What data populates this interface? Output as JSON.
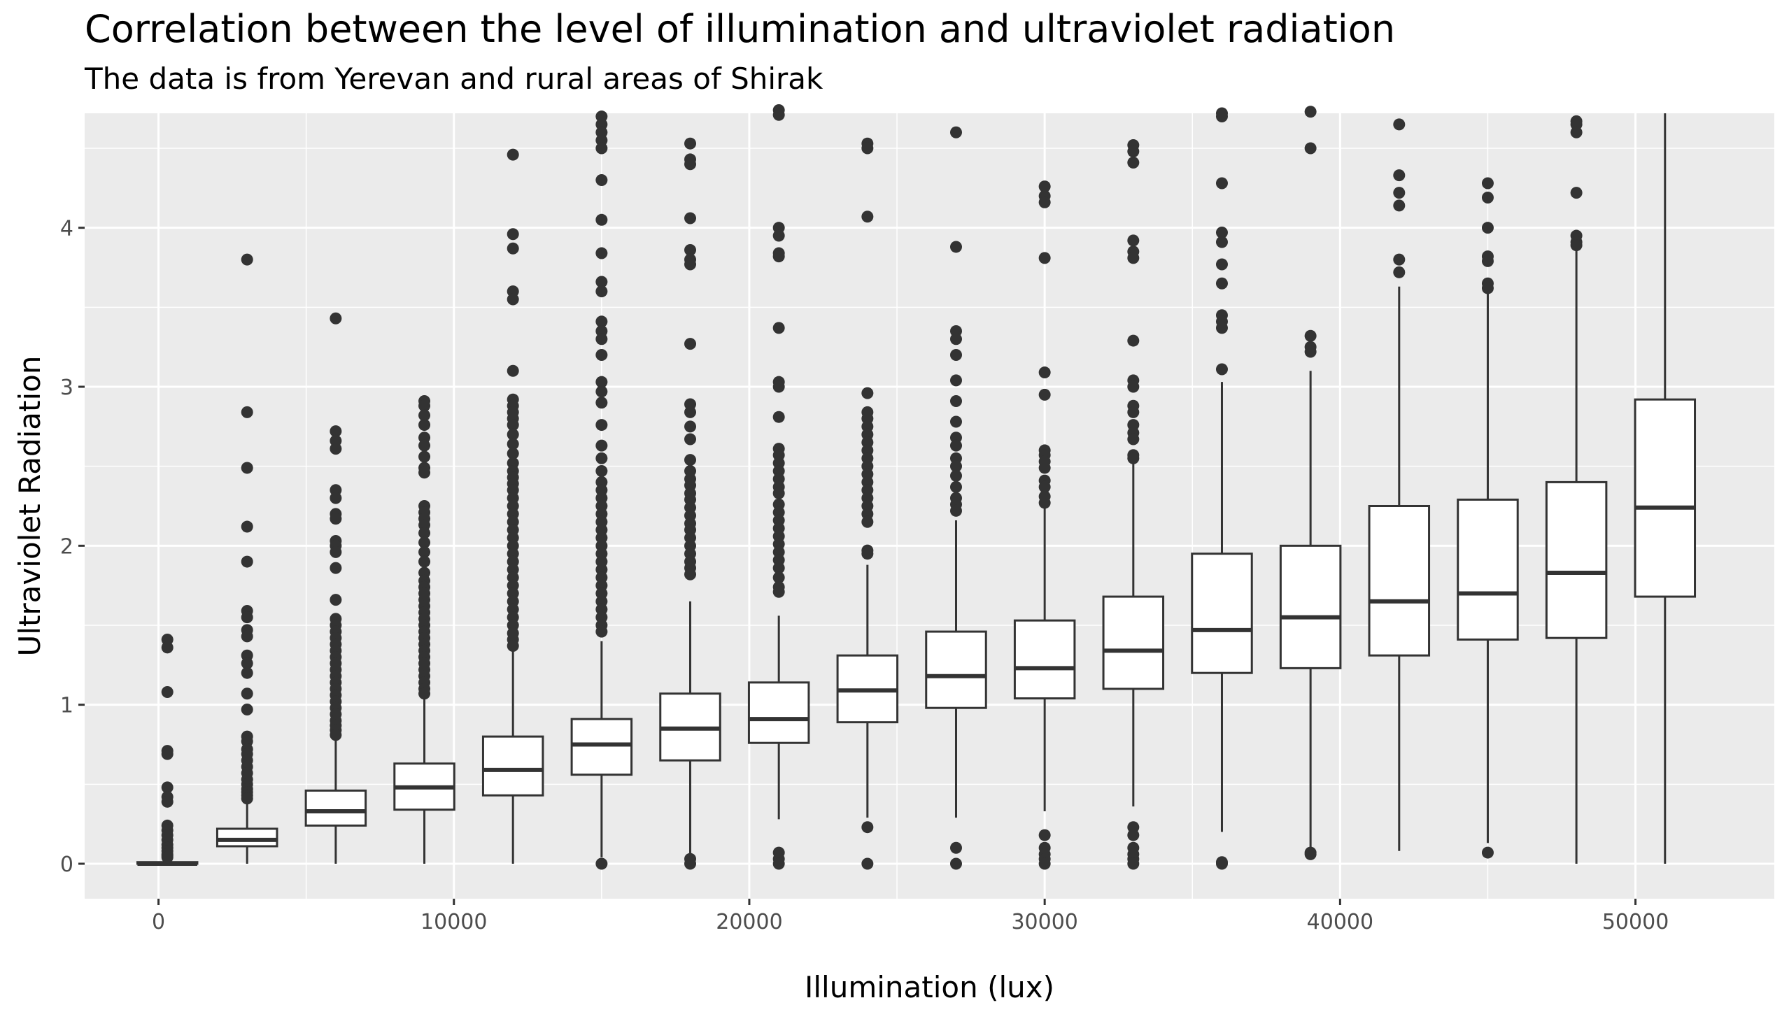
{
  "chart_data": {
    "type": "boxplot",
    "title": "Correlation between the level of illumination and ultraviolet radiation",
    "subtitle": "The data is from Yerevan and rural areas of Shirak",
    "xlabel": "Illumination (lux)",
    "ylabel": "Ultraviolet Radiation",
    "xlim": [
      -2500,
      54700
    ],
    "ylim": [
      -0.22,
      4.72
    ],
    "x_ticks": [
      0,
      10000,
      20000,
      30000,
      40000,
      50000
    ],
    "y_ticks": [
      0,
      1,
      2,
      3,
      4
    ],
    "grid": true,
    "legend": "none",
    "colors": {
      "panel": "#EBEBEB",
      "grid": "#FFFFFF",
      "box_fill": "#FFFFFF",
      "stroke": "#333333",
      "tick_text": "#4D4D4D"
    },
    "boxes": [
      {
        "x": 300,
        "min": 0,
        "q1": 0,
        "median": 0,
        "q3": 0.01,
        "max": 0.03,
        "outliers": [
          1.41,
          1.36,
          1.08,
          0.71,
          0.69,
          0.48,
          0.42,
          0.39,
          0.24,
          0.21,
          0.18,
          0.15,
          0.12,
          0.1,
          0.08,
          0.06,
          0.05,
          0.04
        ]
      },
      {
        "x": 3000,
        "min": 0,
        "q1": 0.11,
        "median": 0.15,
        "q3": 0.22,
        "max": 0.38,
        "outliers": [
          3.8,
          2.84,
          2.49,
          2.12,
          1.9,
          1.59,
          1.55,
          1.47,
          1.43,
          1.31,
          1.26,
          1.2,
          1.07,
          0.97,
          0.8,
          0.77,
          0.72,
          0.69,
          0.65,
          0.61,
          0.57,
          0.53,
          0.5,
          0.47,
          0.45,
          0.43,
          0.41
        ]
      },
      {
        "x": 6000,
        "min": 0,
        "q1": 0.24,
        "median": 0.33,
        "q3": 0.46,
        "max": 0.78,
        "outliers": [
          3.43,
          2.72,
          2.66,
          2.61,
          2.35,
          2.3,
          2.2,
          2.17,
          2.03,
          2.0,
          1.96,
          1.86,
          1.66,
          1.54,
          1.5,
          1.46,
          1.42,
          1.38,
          1.34,
          1.3,
          1.26,
          1.22,
          1.18,
          1.14,
          1.1,
          1.06,
          1.02,
          0.98,
          0.94,
          0.9,
          0.87,
          0.84,
          0.81
        ]
      },
      {
        "x": 9000,
        "min": 0,
        "q1": 0.34,
        "median": 0.48,
        "q3": 0.63,
        "max": 1.06,
        "outliers": [
          2.91,
          2.88,
          2.82,
          2.76,
          2.68,
          2.63,
          2.56,
          2.49,
          2.46,
          2.25,
          2.21,
          2.17,
          2.13,
          2.08,
          2.02,
          1.96,
          1.9,
          1.83,
          1.78,
          1.74,
          1.7,
          1.66,
          1.62,
          1.58,
          1.54,
          1.5,
          1.46,
          1.42,
          1.38,
          1.34,
          1.3,
          1.26,
          1.22,
          1.18,
          1.14,
          1.1,
          1.07
        ]
      },
      {
        "x": 12000,
        "min": 0,
        "q1": 0.43,
        "median": 0.59,
        "q3": 0.8,
        "max": 1.35,
        "outliers": [
          4.46,
          3.96,
          3.87,
          3.6,
          3.55,
          3.1,
          2.92,
          2.88,
          2.84,
          2.8,
          2.76,
          2.7,
          2.64,
          2.58,
          2.52,
          2.47,
          2.43,
          2.39,
          2.35,
          2.3,
          2.25,
          2.2,
          2.15,
          2.1,
          2.05,
          2.0,
          1.95,
          1.9,
          1.85,
          1.8,
          1.75,
          1.7,
          1.65,
          1.6,
          1.55,
          1.5,
          1.45,
          1.41,
          1.37
        ]
      },
      {
        "x": 15000,
        "min": 0.04,
        "q1": 0.56,
        "median": 0.75,
        "q3": 0.91,
        "max": 1.4,
        "outliers": [
          4.7,
          4.65,
          4.6,
          4.55,
          4.5,
          4.3,
          4.05,
          3.84,
          3.66,
          3.6,
          3.41,
          3.35,
          3.3,
          3.2,
          3.03,
          2.97,
          2.9,
          2.76,
          2.63,
          2.55,
          2.47,
          2.4,
          2.35,
          2.3,
          2.25,
          2.2,
          2.15,
          2.1,
          2.05,
          2.0,
          1.95,
          1.9,
          1.85,
          1.8,
          1.75,
          1.7,
          1.65,
          1.6,
          1.55,
          1.5,
          1.46,
          0.0
        ]
      },
      {
        "x": 18000,
        "min": 0.04,
        "q1": 0.65,
        "median": 0.85,
        "q3": 1.07,
        "max": 1.65,
        "outliers": [
          4.53,
          4.43,
          4.4,
          4.06,
          3.86,
          3.8,
          3.77,
          3.27,
          2.89,
          2.84,
          2.75,
          2.67,
          2.54,
          2.47,
          2.42,
          2.38,
          2.33,
          2.29,
          2.24,
          2.19,
          2.14,
          2.1,
          2.05,
          2.0,
          1.95,
          1.9,
          1.86,
          1.82,
          0.03,
          0.0
        ]
      },
      {
        "x": 21000,
        "min": 0.28,
        "q1": 0.76,
        "median": 0.91,
        "q3": 1.14,
        "max": 1.56,
        "outliers": [
          4.74,
          4.71,
          4.0,
          3.95,
          3.84,
          3.82,
          3.37,
          3.03,
          3.0,
          2.81,
          2.61,
          2.57,
          2.52,
          2.47,
          2.42,
          2.37,
          2.33,
          2.26,
          2.21,
          2.16,
          2.11,
          2.06,
          2.01,
          1.96,
          1.91,
          1.86,
          1.8,
          1.74,
          1.71,
          0.07,
          0.03,
          0.0
        ]
      },
      {
        "x": 24000,
        "min": 0.29,
        "q1": 0.89,
        "median": 1.09,
        "q3": 1.31,
        "max": 1.88,
        "outliers": [
          4.53,
          4.5,
          4.07,
          2.96,
          2.84,
          2.8,
          2.75,
          2.7,
          2.65,
          2.6,
          2.55,
          2.5,
          2.45,
          2.4,
          2.35,
          2.3,
          2.25,
          2.2,
          2.15,
          1.97,
          1.95,
          0.23,
          0.0
        ]
      },
      {
        "x": 27000,
        "min": 0.29,
        "q1": 0.98,
        "median": 1.18,
        "q3": 1.46,
        "max": 2.16,
        "outliers": [
          4.6,
          3.88,
          3.35,
          3.3,
          3.2,
          3.04,
          2.91,
          2.78,
          2.68,
          2.63,
          2.55,
          2.5,
          2.44,
          2.37,
          2.3,
          2.26,
          2.22,
          0.1,
          0.0
        ]
      },
      {
        "x": 30000,
        "min": 0.33,
        "q1": 1.04,
        "median": 1.23,
        "q3": 1.53,
        "max": 2.26,
        "outliers": [
          4.26,
          4.2,
          4.16,
          3.81,
          3.09,
          2.95,
          2.6,
          2.57,
          2.53,
          2.49,
          2.41,
          2.37,
          2.31,
          2.27,
          0.18,
          0.1,
          0.06,
          0.03,
          0.0
        ]
      },
      {
        "x": 33000,
        "min": 0.36,
        "q1": 1.1,
        "median": 1.34,
        "q3": 1.68,
        "max": 2.53,
        "outliers": [
          4.52,
          4.48,
          4.41,
          3.92,
          3.85,
          3.81,
          3.29,
          3.04,
          3.0,
          2.88,
          2.84,
          2.76,
          2.71,
          2.67,
          2.57,
          2.55,
          0.23,
          0.18,
          0.1,
          0.06,
          0.03,
          0.0
        ]
      },
      {
        "x": 36000,
        "min": 0.2,
        "q1": 1.2,
        "median": 1.47,
        "q3": 1.95,
        "max": 3.03,
        "outliers": [
          4.72,
          4.7,
          4.28,
          3.97,
          3.91,
          3.77,
          3.65,
          3.45,
          3.41,
          3.37,
          3.11,
          0.01,
          0.0
        ]
      },
      {
        "x": 39000,
        "min": 0.08,
        "q1": 1.23,
        "median": 1.55,
        "q3": 2.0,
        "max": 3.1,
        "outliers": [
          4.76,
          4.73,
          4.5,
          3.32,
          3.25,
          3.22,
          0.07,
          0.06
        ]
      },
      {
        "x": 42000,
        "min": 0.08,
        "q1": 1.31,
        "median": 1.65,
        "q3": 2.25,
        "max": 3.63,
        "outliers": [
          4.65,
          4.33,
          4.22,
          4.14,
          3.8,
          3.72
        ]
      },
      {
        "x": 45000,
        "min": 0.13,
        "q1": 1.41,
        "median": 1.7,
        "q3": 2.29,
        "max": 3.6,
        "outliers": [
          4.28,
          4.19,
          4.0,
          3.82,
          3.79,
          3.65,
          3.62,
          0.07
        ]
      },
      {
        "x": 48000,
        "min": 0,
        "q1": 1.42,
        "median": 1.83,
        "q3": 2.4,
        "max": 3.87,
        "outliers": [
          4.67,
          4.65,
          4.6,
          4.22,
          3.95,
          3.91,
          3.89
        ]
      },
      {
        "x": 51000,
        "min": 0,
        "q1": 1.68,
        "median": 2.24,
        "q3": 2.92,
        "max": 4.72,
        "outliers": []
      }
    ]
  }
}
